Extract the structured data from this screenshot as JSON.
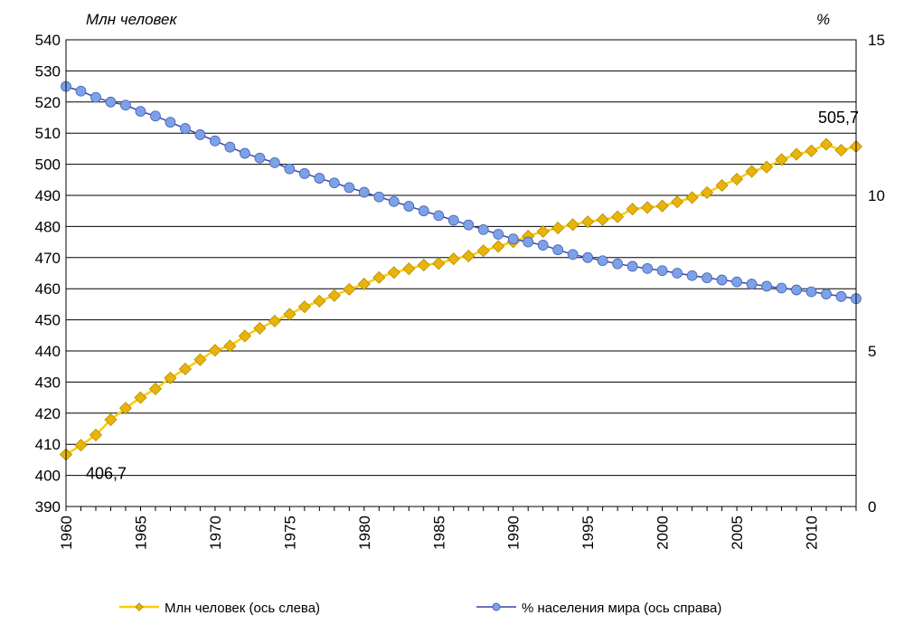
{
  "chart_data": {
    "type": "line",
    "y_left_label": "Млн человек",
    "y_right_label": "%",
    "y_left_range": [
      390,
      540
    ],
    "y_right_range": [
      0,
      15
    ],
    "y_left_ticks": [
      "390",
      "400",
      "410",
      "420",
      "430",
      "440",
      "450",
      "460",
      "470",
      "480",
      "490",
      "500",
      "510",
      "520",
      "530",
      "540"
    ],
    "y_right_ticks": [
      "0",
      "5",
      "10",
      "15"
    ],
    "x_tick_labels": [
      "1960",
      "1965",
      "1970",
      "1975",
      "1980",
      "1985",
      "1990",
      "1995",
      "2000",
      "2005",
      "2010"
    ],
    "x": [
      1960,
      1961,
      1962,
      1963,
      1964,
      1965,
      1966,
      1967,
      1968,
      1969,
      1970,
      1971,
      1972,
      1973,
      1974,
      1975,
      1976,
      1977,
      1978,
      1979,
      1980,
      1981,
      1982,
      1983,
      1984,
      1985,
      1986,
      1987,
      1988,
      1989,
      1990,
      1991,
      1992,
      1993,
      1994,
      1995,
      1996,
      1997,
      1998,
      1999,
      2000,
      2001,
      2002,
      2003,
      2004,
      2005,
      2006,
      2007,
      2008,
      2009,
      2010,
      2011,
      2012,
      2013
    ],
    "series": [
      {
        "name": "Млн  человек (ось слева)",
        "axis": "left",
        "color": "#E8B40A",
        "line_color": "#FFCC00",
        "marker": "diamond",
        "values": [
          406.7,
          409.7,
          413,
          417.9,
          421.6,
          425,
          427.8,
          431.3,
          434.2,
          437.2,
          440.2,
          441.6,
          444.8,
          447.3,
          449.6,
          451.8,
          454.2,
          456,
          457.8,
          459.8,
          461.5,
          463.6,
          465.2,
          466.4,
          467.6,
          468.1,
          469.6,
          470.5,
          472.2,
          473.6,
          475.1,
          476.9,
          478.4,
          479.5,
          480.6,
          481.5,
          482.2,
          483.1,
          485.6,
          486.1,
          486.6,
          487.9,
          489.3,
          490.9,
          493.2,
          495.2,
          497.7,
          499.1,
          501.5,
          503.2,
          504.3,
          506.4,
          504.5,
          505.7
        ]
      },
      {
        "name": "% населения мира (ось справа)",
        "axis": "right",
        "color": "#7BA2E8",
        "line_color": "#3C44A8",
        "marker": "circle",
        "values": [
          13.5,
          13.35,
          13.15,
          13,
          12.9,
          12.7,
          12.55,
          12.35,
          12.15,
          11.95,
          11.75,
          11.55,
          11.35,
          11.2,
          11.05,
          10.85,
          10.7,
          10.55,
          10.4,
          10.25,
          10.1,
          9.95,
          9.8,
          9.65,
          9.5,
          9.35,
          9.2,
          9.05,
          8.9,
          8.75,
          8.6,
          8.5,
          8.4,
          8.25,
          8.1,
          8,
          7.9,
          7.8,
          7.72,
          7.65,
          7.58,
          7.5,
          7.42,
          7.35,
          7.28,
          7.22,
          7.15,
          7.08,
          7.02,
          6.96,
          6.9,
          6.83,
          6.75,
          6.68
        ]
      }
    ],
    "annotations": [
      {
        "text": "406,7",
        "series": 0,
        "x": 1960
      },
      {
        "text": "505,7",
        "series": 0,
        "x": 2013
      }
    ],
    "grid": "horizontal",
    "legend_position": "bottom"
  }
}
